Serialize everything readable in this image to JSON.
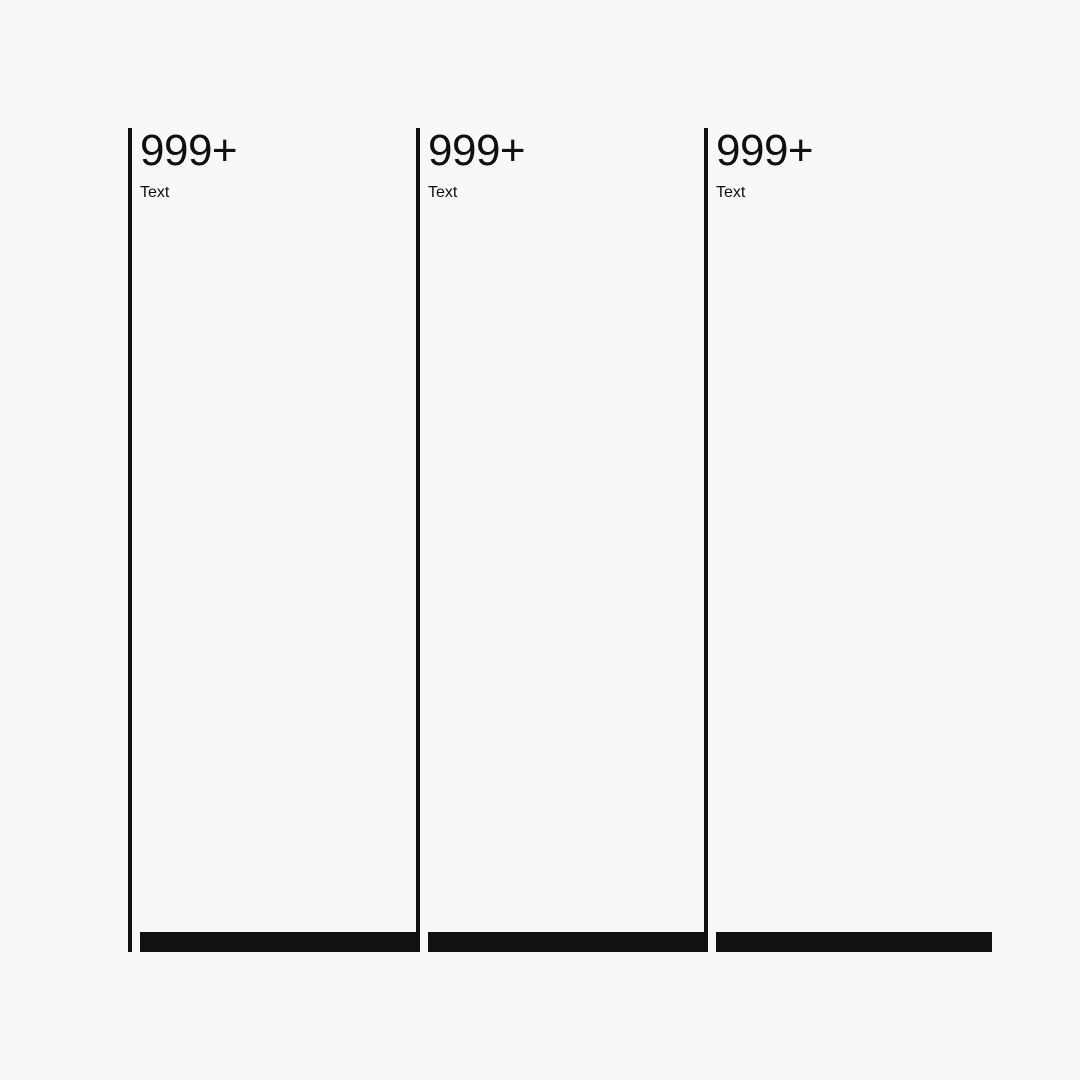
{
  "colors": {
    "background": "#f8f8f8",
    "foreground": "#111111"
  },
  "cards": [
    {
      "value": "999+",
      "label": "Text"
    },
    {
      "value": "999+",
      "label": "Text"
    },
    {
      "value": "999+",
      "label": "Text"
    }
  ]
}
